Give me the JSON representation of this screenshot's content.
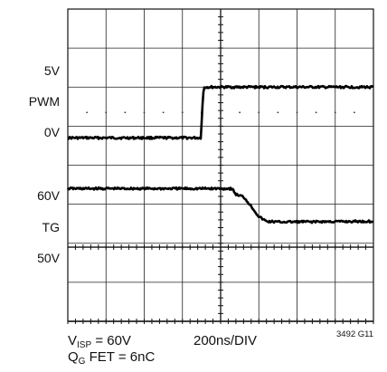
{
  "chart_data": {
    "type": "line",
    "title": "",
    "xlabel": "200ns/DIV",
    "ylabel": "",
    "grid": true,
    "grid_divisions": {
      "x": 8,
      "y": 8
    },
    "time_per_div_ns": 200,
    "x_range_ns": [
      0,
      1600
    ],
    "channels": [
      {
        "name": "PWM",
        "level_labels": [
          "5V",
          "0V"
        ],
        "levels_v": [
          5,
          0
        ],
        "level_divs": [
          6.0,
          4.7
        ],
        "points": [
          [
            0,
            0
          ],
          [
            696,
            0
          ],
          [
            706,
            3.5
          ],
          [
            712,
            5
          ],
          [
            1600,
            5
          ]
        ]
      },
      {
        "name": "TG",
        "level_labels": [
          "60V",
          "50V"
        ],
        "levels_v": [
          60,
          50
        ],
        "level_divs": [
          3.4,
          1.9
        ],
        "points": [
          [
            0,
            60
          ],
          [
            860,
            60
          ],
          [
            880,
            59
          ],
          [
            920,
            58.6
          ],
          [
            960,
            57
          ],
          [
            1000,
            55.2
          ],
          [
            1040,
            54.4
          ],
          [
            1100,
            54.3
          ],
          [
            1600,
            54.4
          ]
        ]
      }
    ],
    "annotations": {
      "visp_label": "V",
      "visp_sub": "ISP",
      "visp_value": "= 60V",
      "qg_label": "Q",
      "qg_sub": "G",
      "qg_value": "FET = 6nC",
      "figure_id": "3492 G11"
    }
  }
}
